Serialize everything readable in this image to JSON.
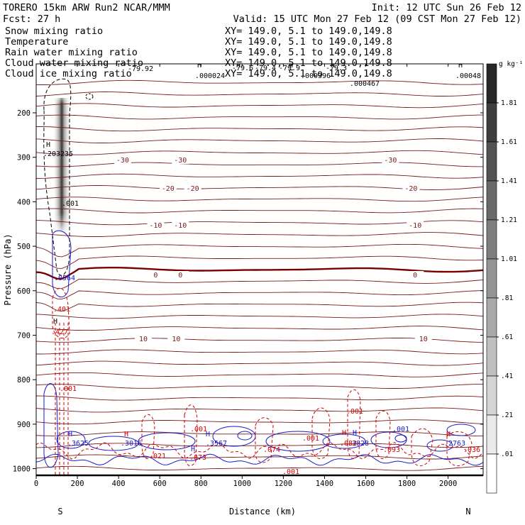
{
  "header": {
    "left1": "TORERO  15km ARW   Run2    NCAR/MMM",
    "left2": "Fcst:   27 h",
    "right1": "Init: 12 UTC Sun 26 Feb 12",
    "right2": "Valid: 15 UTC Mon 27 Feb 12 (09 CST Mon 27 Feb 12)"
  },
  "legend": [
    {
      "name": "Snow mixing ratio",
      "xy": "XY= 149.0,  5.1 to 149.0,149.8",
      "color": "#000000"
    },
    {
      "name": "Temperature",
      "xy": "XY= 149.0,  5.1 to 149.0,149.8",
      "color": "#cc0000"
    },
    {
      "name": "Rain water mixing ratio",
      "xy": "XY= 149.0,  5.1 to 149.0,149.8",
      "color": "#cc0000"
    },
    {
      "name": "Cloud water mixing ratio",
      "xy": "XY= 149.0,  5.1 to 149.0,149.8",
      "color": "#0000cc"
    },
    {
      "name": "Cloud ice mixing ratio",
      "xy": "XY= 149.0,  5.1 to 149.0,149.8",
      "color": "#000000"
    }
  ],
  "colorbar": {
    "unit": "g kg⁻¹",
    "levels": [
      "1.81",
      "1.61",
      "1.41",
      "1.21",
      "1.01",
      ".81",
      ".61",
      ".41",
      ".21",
      ".01"
    ]
  },
  "chart_data": {
    "type": "cross-section",
    "xlabel": "Distance (km)",
    "ylabel": "Pressure (hPa)",
    "xlim": [
      0,
      2170
    ],
    "ylim": [
      1015,
      90
    ],
    "x_ticks": [
      0,
      200,
      400,
      600,
      800,
      1000,
      1200,
      1400,
      1600,
      1800,
      2000
    ],
    "y_ticks": [
      200,
      300,
      400,
      500,
      600,
      700,
      800,
      900,
      1000
    ],
    "x_end_labels": {
      "left": "S",
      "right": "N"
    },
    "temperature_contours": [
      {
        "level": -30,
        "label": "-30",
        "labels_at_km": [
          420,
          700,
          1720
        ]
      },
      {
        "level": -20,
        "label": "-20",
        "labels_at_km": [
          640,
          760,
          1820
        ]
      },
      {
        "level": -10,
        "label": "-10",
        "labels_at_km": [
          580,
          700,
          1840
        ]
      },
      {
        "level": 0,
        "label": "0",
        "labels_at_km": [
          580,
          700,
          1840
        ]
      },
      {
        "level": 10,
        "label": "10",
        "labels_at_km": [
          520,
          680,
          1880
        ]
      }
    ],
    "annotations": [
      "-79.92",
      ".000024",
      "-79.6",
      "-79.4",
      "-79.9",
      "-79.3",
      ".000396",
      ".000467",
      ".00048",
      ".203235",
      ".001",
      ".0564",
      ".401",
      ".427",
      ".001",
      ".001",
      ".001",
      ".001",
      ".3625",
      ".3016",
      ".021",
      ".073",
      ".3567",
      ".074",
      ".3828",
      ".001",
      ".082",
      ".093",
      ".2763",
      ".036",
      ".001"
    ],
    "high_markers": [
      "H",
      "H",
      "H",
      "H",
      "H",
      "H",
      "H",
      "H",
      "H",
      "H",
      "H",
      "H",
      "H",
      "H"
    ],
    "snow_peak_km": 120,
    "snow_max": 1.9
  }
}
